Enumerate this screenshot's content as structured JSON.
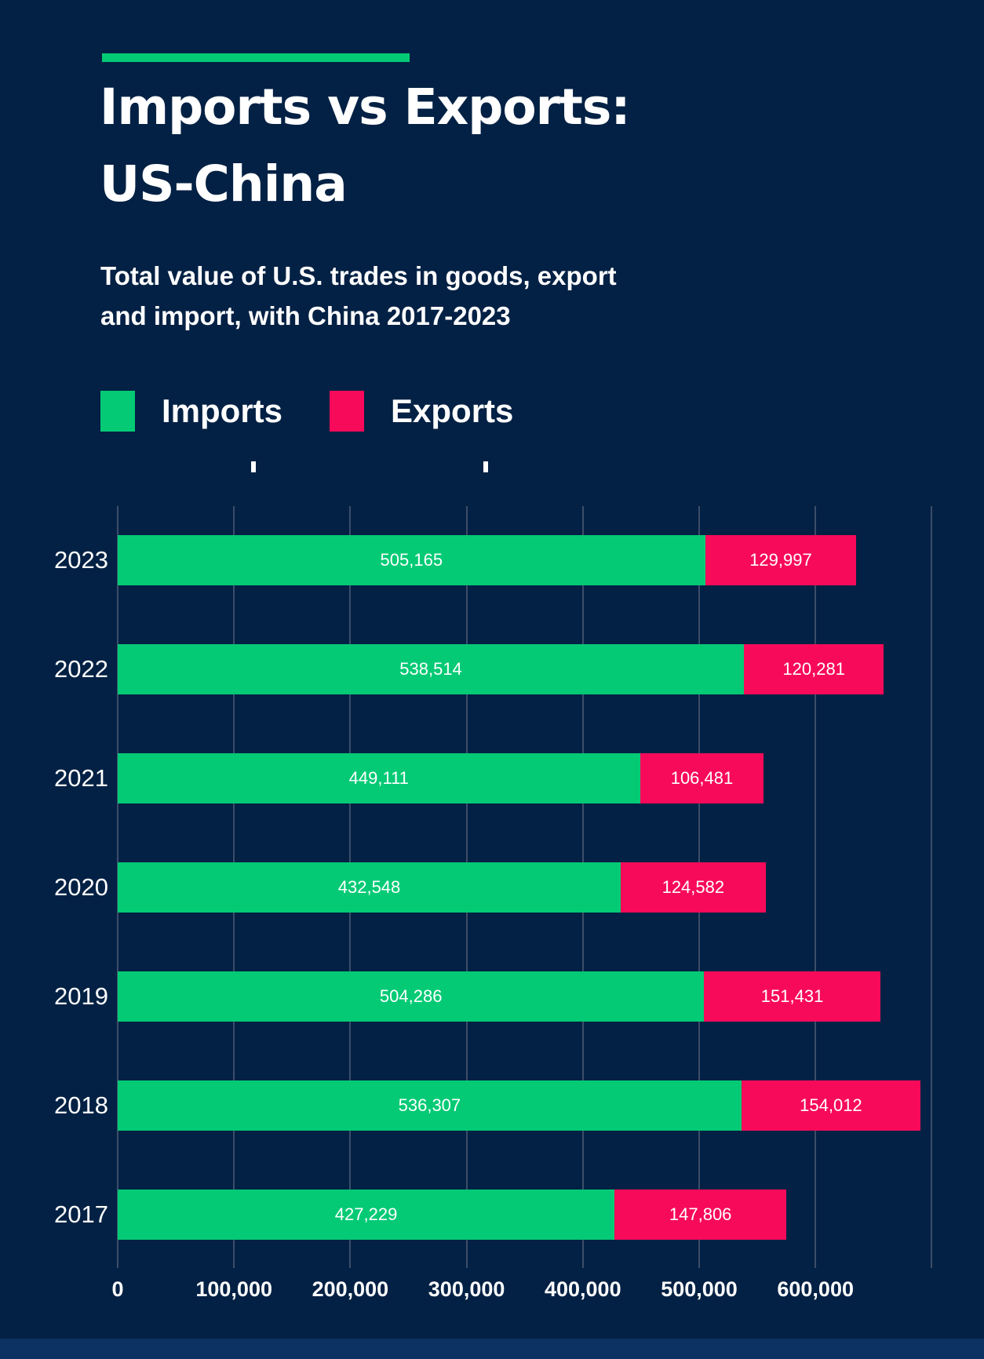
{
  "page": {
    "background_color": "#032144",
    "footer_strip_color": "#0c3263",
    "gridline_color": "#3c4d68"
  },
  "header": {
    "accent_color": "#04ca75",
    "title_line1": "Imports vs Exports:",
    "title_line2": "US-China",
    "subtitle_line1": "Total value of U.S. trades in goods, export",
    "subtitle_line2": "and import, with China 2017-2023"
  },
  "legend": [
    {
      "label": "Imports",
      "color": "#04ca75"
    },
    {
      "label": "Exports",
      "color": "#f80a5a"
    }
  ],
  "chart_data": {
    "type": "bar",
    "orientation": "horizontal",
    "stacked": true,
    "title": "Imports vs Exports: US-China",
    "subtitle": "Total value of U.S. trades in goods, export and import, with China 2017-2023",
    "categories": [
      "2023",
      "2022",
      "2021",
      "2020",
      "2019",
      "2018",
      "2017"
    ],
    "series": [
      {
        "name": "Imports",
        "color": "#04ca75",
        "values": [
          505165,
          538514,
          449111,
          432548,
          504286,
          536307,
          427229
        ]
      },
      {
        "name": "Exports",
        "color": "#f80a5a",
        "values": [
          129997,
          120281,
          106481,
          124582,
          151431,
          154012,
          147806
        ]
      }
    ],
    "x_axis": {
      "min": 0,
      "max": 700000,
      "gridline_interval": 100000,
      "tick_labels": [
        "0",
        "100,000",
        "200,000",
        "300,000",
        "400,000",
        "500,000",
        "600,000"
      ]
    },
    "grid": true,
    "legend_position": "top",
    "value_labels": "inside-segments"
  }
}
